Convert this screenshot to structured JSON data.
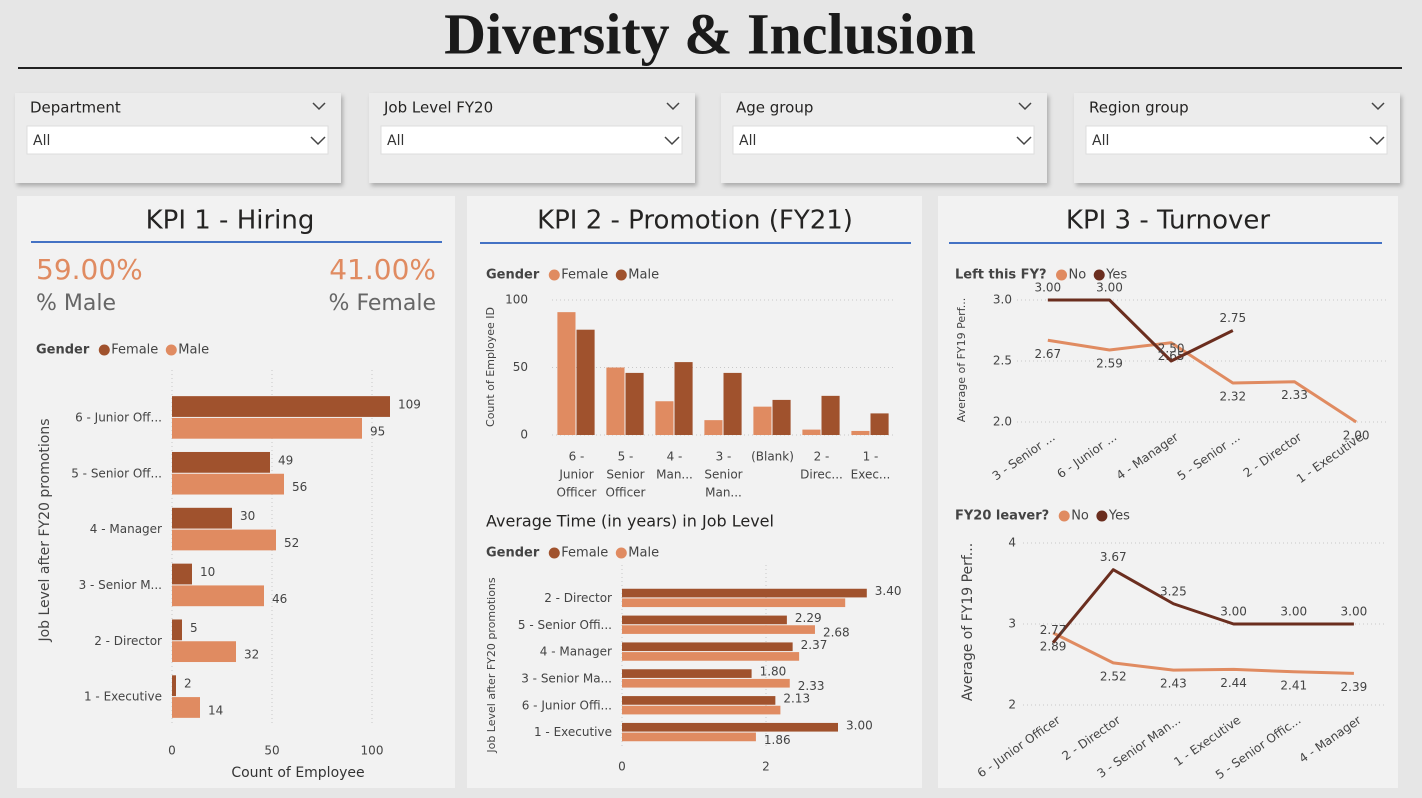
{
  "header": {
    "title": "Diversity & Inclusion"
  },
  "filters": [
    {
      "label": "Department",
      "value": "All"
    },
    {
      "label": "Job Level FY20",
      "value": "All"
    },
    {
      "label": "Age group",
      "value": "All"
    },
    {
      "label": "Region group",
      "value": "All"
    }
  ],
  "panels": [
    "KPI 1 - Hiring",
    "KPI 2 - Promotion (FY21)",
    "KPI 3 - Turnover"
  ],
  "kpis": [
    {
      "value": "59.00%",
      "label": "% Male"
    },
    {
      "value": "41.00%",
      "label": "% Female"
    }
  ],
  "chart_data": [
    {
      "type": "bar",
      "orientation": "horizontal",
      "legend_title": "Gender",
      "x_label": "Count of Employee",
      "y_label": "Job Level after FY20 promotions",
      "categories": [
        "6 - Junior Off...",
        "5 - Senior Off...",
        "4 - Manager",
        "3 - Senior M...",
        "2 - Director",
        "1 - Executive"
      ],
      "series": [
        {
          "name": "Female",
          "color": "#a0522d",
          "values": [
            109,
            49,
            30,
            10,
            5,
            2
          ]
        },
        {
          "name": "Male",
          "color": "#e08b61",
          "values": [
            95,
            56,
            52,
            46,
            32,
            14
          ]
        }
      ],
      "data_labels": true,
      "xlim": [
        0,
        110
      ],
      "xticks": [
        0,
        50,
        100
      ],
      "grid": true
    },
    {
      "type": "bar",
      "orientation": "vertical",
      "legend_title": "Gender",
      "y_label": "Count of Employee ID",
      "categories": [
        [
          "6 -",
          "Junior",
          "Officer"
        ],
        [
          "5 -",
          "Senior",
          "Officer"
        ],
        [
          "4 -",
          "Man..."
        ],
        [
          "3 -",
          "Senior",
          "Man..."
        ],
        [
          "(Blank)"
        ],
        [
          "2 -",
          "Direc..."
        ],
        [
          "1 -",
          "Exec..."
        ]
      ],
      "series": [
        {
          "name": "Female",
          "color": "#e08b61",
          "values": [
            91,
            50,
            25,
            11,
            21,
            4,
            3
          ]
        },
        {
          "name": "Male",
          "color": "#a0522d",
          "values": [
            78,
            46,
            54,
            46,
            26,
            29,
            16
          ]
        }
      ],
      "ylim": [
        0,
        100
      ],
      "yticks": [
        0,
        50,
        100
      ],
      "grid": true
    },
    {
      "type": "bar",
      "orientation": "horizontal",
      "title": "Average Time (in years) in Job Level",
      "legend_title": "Gender",
      "y_label": "Job Level after FY20 promotions",
      "categories": [
        "2 - Director",
        "5 - Senior Offi...",
        "4 - Manager",
        "3 - Senior Ma...",
        "6 - Junior Offi...",
        "1 - Executive"
      ],
      "series": [
        {
          "name": "Female",
          "color": "#a0522d",
          "values": [
            3.4,
            2.29,
            2.37,
            1.8,
            2.13,
            3.0
          ],
          "value_labels": [
            "3.40",
            "2.29",
            "2.37",
            "1.80",
            "2.13",
            "3.00"
          ]
        },
        {
          "name": "Male",
          "color": "#e08b61",
          "values": [
            3.1,
            2.68,
            2.46,
            2.33,
            2.2,
            1.86
          ],
          "value_labels": [
            null,
            "2.68",
            null,
            "2.33",
            null,
            "1.86"
          ]
        }
      ],
      "xlim": [
        0,
        3.5
      ],
      "xticks": [
        0,
        2
      ],
      "grid": true
    },
    {
      "type": "line",
      "legend_title": "Left this FY?",
      "y_label": "Average of FY19 Perf...",
      "categories": [
        "3 - Senior ...",
        "6 - Junior ...",
        "4 - Manager",
        "5 - Senior ...",
        "2 - Director",
        "1 - Executive"
      ],
      "series": [
        {
          "name": "No",
          "color": "#e08b61",
          "values": [
            2.67,
            2.59,
            2.65,
            2.32,
            2.33,
            2.0
          ],
          "value_labels": [
            "2.67",
            "2.59",
            "2.65",
            "2.32",
            "2.33",
            "2.00"
          ]
        },
        {
          "name": "Yes",
          "color": "#6b2e1f",
          "values": [
            3.0,
            3.0,
            2.5,
            2.75,
            null,
            null
          ],
          "value_labels": [
            "3.00",
            "3.00",
            "2.50",
            "2.75",
            null,
            null
          ]
        }
      ],
      "ylim": [
        2,
        3
      ],
      "yticks": [
        {
          "value": 2,
          "label": "2.0"
        },
        {
          "value": 2.5,
          "label": "2.5"
        },
        {
          "value": 3,
          "label": "3.0"
        }
      ],
      "grid": true
    },
    {
      "type": "line",
      "legend_title": "FY20 leaver?",
      "y_label": "Average of FY19 Perf...",
      "categories": [
        "6 - Junior Officer",
        "2 - Director",
        "3 - Senior Man...",
        "1 - Executive",
        "5 - Senior Offic...",
        "4 - Manager"
      ],
      "series": [
        {
          "name": "No",
          "color": "#e08b61",
          "values": [
            2.89,
            2.52,
            2.43,
            2.44,
            2.41,
            2.39
          ],
          "value_labels": [
            "2.89",
            "2.52",
            "2.43",
            "2.44",
            "2.41",
            "2.39"
          ]
        },
        {
          "name": "Yes",
          "color": "#6b2e1f",
          "values": [
            2.77,
            3.67,
            3.25,
            3.0,
            3.0,
            3.0
          ],
          "value_labels": [
            "2.77",
            "3.67",
            "3.25",
            "3.00",
            "3.00",
            "3.00"
          ]
        }
      ],
      "ylim": [
        2,
        4
      ],
      "yticks": [
        2,
        3,
        4
      ],
      "grid": true
    }
  ]
}
